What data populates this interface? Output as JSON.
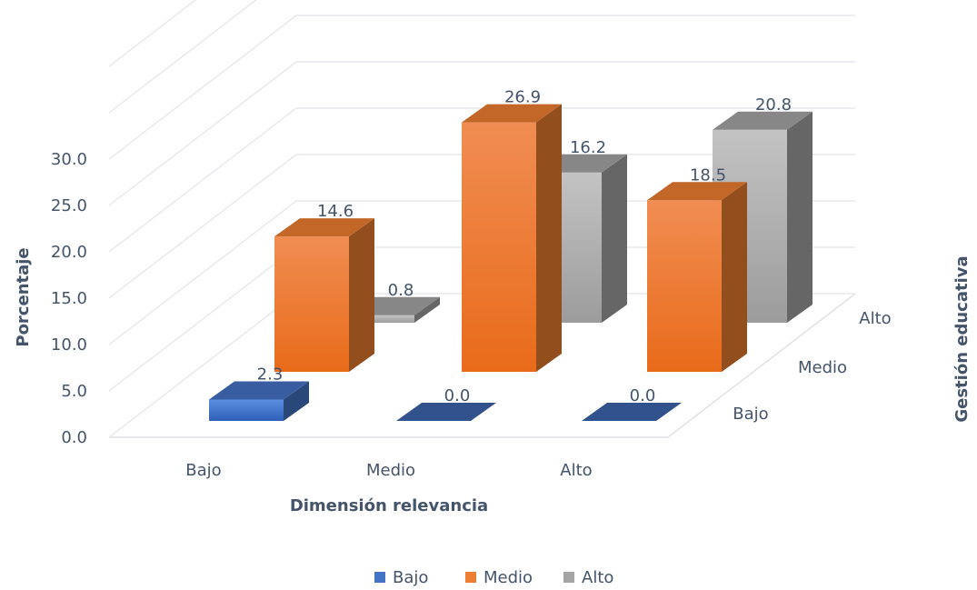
{
  "chart_data": {
    "type": "bar",
    "subtype": "3d-column",
    "title": "",
    "categories": [
      "Bajo",
      "Medio",
      "Alto"
    ],
    "series": [
      {
        "name": "Bajo",
        "values": [
          2.3,
          0.0,
          0.0
        ],
        "color": "#4472c4"
      },
      {
        "name": "Medio",
        "values": [
          14.6,
          26.9,
          18.5
        ],
        "color": "#ed7d31"
      },
      {
        "name": "Alto",
        "values": [
          0.8,
          16.2,
          20.8
        ],
        "color": "#a5a5a5"
      }
    ],
    "data_labels": [
      [
        "2.3",
        "0.0",
        "0.0"
      ],
      [
        "14.6",
        "26.9",
        "18.5"
      ],
      [
        "0.8",
        "16.2",
        "20.8"
      ]
    ],
    "xlabel": "Dimensión relevancia",
    "ylabel": "Porcentaje",
    "zlabel": "Gestión educativa",
    "y_ticks": [
      "0.0",
      "5.0",
      "10.0",
      "15.0",
      "20.0",
      "25.0",
      "30.0"
    ],
    "z_ticks": [
      "Bajo",
      "Medio",
      "Alto"
    ],
    "ylim": [
      0,
      30
    ],
    "grid": true,
    "legend": {
      "position": "bottom",
      "entries": [
        "Bajo",
        "Medio",
        "Alto"
      ]
    }
  }
}
